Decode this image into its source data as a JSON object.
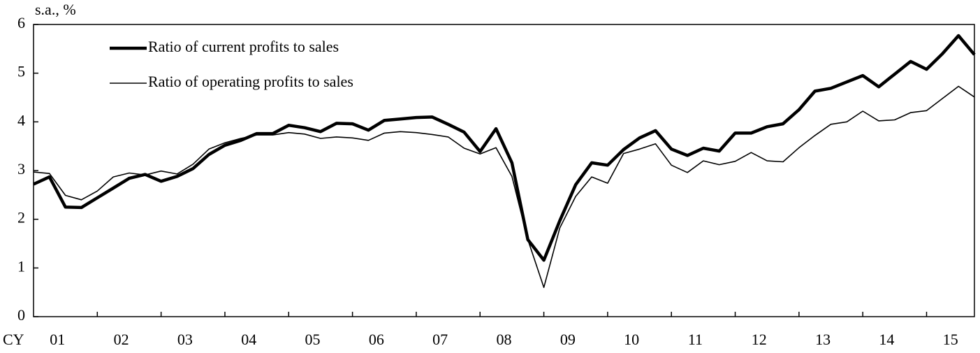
{
  "chart_data": {
    "type": "line",
    "y_label": "s.a., %",
    "x_label": "CY",
    "categories": [
      null,
      "01",
      null,
      null,
      null,
      "02",
      null,
      null,
      null,
      "03",
      null,
      null,
      null,
      "04",
      null,
      null,
      null,
      "05",
      null,
      null,
      null,
      "06",
      null,
      null,
      null,
      "07",
      null,
      null,
      null,
      "08",
      null,
      null,
      null,
      "09",
      null,
      null,
      null,
      "10",
      null,
      null,
      null,
      "11",
      null,
      null,
      null,
      "12",
      null,
      null,
      null,
      "13",
      null,
      null,
      null,
      "14",
      null,
      null,
      null,
      "15",
      null,
      null
    ],
    "series": [
      {
        "name": "Ratio of current profits to sales",
        "color": "#000000",
        "width": 4.5,
        "values": [
          2.72,
          2.87,
          2.25,
          2.24,
          2.44,
          2.64,
          2.84,
          2.92,
          2.78,
          2.88,
          3.04,
          3.33,
          3.52,
          3.62,
          3.76,
          3.76,
          3.93,
          3.88,
          3.8,
          3.97,
          3.96,
          3.83,
          4.03,
          4.06,
          4.09,
          4.1,
          3.95,
          3.79,
          3.39,
          3.86,
          3.16,
          1.58,
          1.16,
          1.97,
          2.71,
          3.16,
          3.11,
          3.43,
          3.67,
          3.82,
          3.44,
          3.31,
          3.46,
          3.4,
          3.77,
          3.77,
          3.9,
          3.96,
          4.25,
          4.63,
          4.69,
          4.82,
          4.95,
          4.72,
          4.98,
          5.24,
          5.08,
          5.4,
          5.77,
          5.38
        ]
      },
      {
        "name": "Ratio of operating profits to sales",
        "color": "#000000",
        "width": 1.6,
        "values": [
          2.97,
          2.94,
          2.49,
          2.4,
          2.58,
          2.87,
          2.95,
          2.91,
          2.99,
          2.93,
          3.13,
          3.44,
          3.57,
          3.66,
          3.73,
          3.73,
          3.78,
          3.75,
          3.66,
          3.69,
          3.67,
          3.62,
          3.77,
          3.8,
          3.78,
          3.74,
          3.69,
          3.46,
          3.34,
          3.47,
          2.88,
          1.58,
          0.6,
          1.82,
          2.47,
          2.87,
          2.74,
          3.35,
          3.44,
          3.55,
          3.11,
          2.96,
          3.2,
          3.12,
          3.19,
          3.37,
          3.2,
          3.18,
          3.47,
          3.72,
          3.95,
          4.0,
          4.22,
          4.02,
          4.04,
          4.19,
          4.23,
          4.48,
          4.73,
          4.51
        ]
      }
    ],
    "ylim": [
      0,
      6
    ],
    "yticks": [
      0,
      1,
      2,
      3,
      4,
      5,
      6
    ],
    "legend": "upper left"
  }
}
